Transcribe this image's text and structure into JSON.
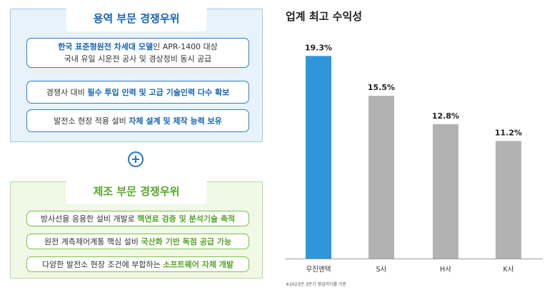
{
  "service_panel": {
    "title": "용역 부문 경쟁우위",
    "items": [
      {
        "lines": [
          [
            {
              "text": "한국 표준형원전 차세대 모델",
              "hl": true
            },
            {
              "text": "인 APR-1400 대상",
              "hl": false
            }
          ],
          [
            {
              "text": "국내 유일 시운전 공사 및 경상정비 동시 공급",
              "hl": false
            }
          ]
        ]
      },
      {
        "lines": [
          [
            {
              "text": "경쟁사 대비 ",
              "hl": false
            },
            {
              "text": "필수 투입 인력 및 고급 기술인력 다수 확보",
              "hl": true
            }
          ]
        ]
      },
      {
        "lines": [
          [
            {
              "text": "발전소 현장 적용 설비 ",
              "hl": false
            },
            {
              "text": "자체 설계 및 제작 능력 보유",
              "hl": true
            }
          ]
        ]
      }
    ]
  },
  "manufacturing_panel": {
    "title": "제조 부문 경쟁우위",
    "items": [
      {
        "lines": [
          [
            {
              "text": "방사선을 응용한 설비 개발로 ",
              "hl": false
            },
            {
              "text": "핵연료 검증 및 분석기술 축적",
              "hl": true
            }
          ]
        ]
      },
      {
        "lines": [
          [
            {
              "text": "원전 계측제어계통 핵심 설비 ",
              "hl": false
            },
            {
              "text": "국산화 기반 독점 공급 가능",
              "hl": true
            }
          ]
        ]
      },
      {
        "lines": [
          [
            {
              "text": "다양한 발전소 현장 조건에 부합하는 ",
              "hl": false
            },
            {
              "text": "소프트웨어 자체 개발",
              "hl": true
            }
          ]
        ]
      }
    ]
  },
  "chart_data": {
    "type": "bar",
    "title": "업계 최고 수익성",
    "categories": [
      "우진엔텍",
      "S사",
      "H사",
      "K사"
    ],
    "values": [
      19.3,
      15.5,
      12.8,
      11.2
    ],
    "value_labels": [
      "19.3%",
      "15.5%",
      "12.8%",
      "11.2%"
    ],
    "unit": "%",
    "ylim": [
      0,
      21.5
    ],
    "highlight_index": 0,
    "grid": false,
    "legend": "none",
    "footnote": "※2023년 3분기 영업이익률 기준"
  },
  "colors": {
    "highlight_bar": "#2f96dc",
    "other_bar": "#b3b2b2",
    "axis": "#999999"
  }
}
